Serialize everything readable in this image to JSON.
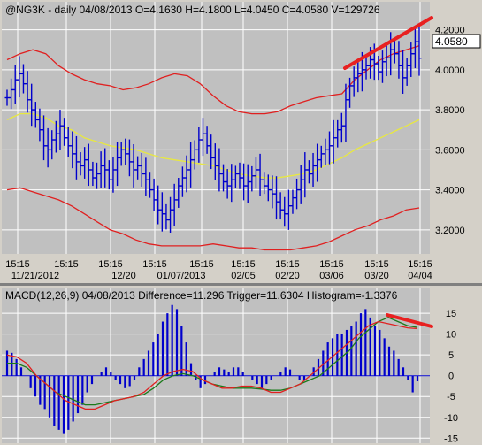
{
  "colors": {
    "bg": "#d4d0c8",
    "plot_bg": "#c0c0c0",
    "grid": "#ffffff",
    "bars": "#0000cc",
    "bollinger": "#e02020",
    "ma": "#e8e840",
    "macd_line": "#e02020",
    "signal_line": "#1a7a1a",
    "trendline": "#e82020",
    "price_box_bg": "#ffffff"
  },
  "price_panel": {
    "title": "@NG3K - daily 04/08/2013 O=4.1630 H=4.1800 L=4.0450 C=4.0580 V=129726",
    "last_price_label": "4.0580",
    "y_ticks": [
      "4.2000",
      "4.0000",
      "3.8000",
      "3.6000",
      "3.4000",
      "3.2000"
    ],
    "x_time_labels": [
      "15:15",
      "15:15",
      "15:15",
      "15:15",
      "15:15",
      "15:15",
      "15:15",
      "15:15",
      "15:15",
      "15:15"
    ],
    "x_date_labels": [
      "11/21/2012",
      "12/20",
      "01/07/2013",
      "02/05",
      "02/20",
      "03/06",
      "03/20",
      "04/04"
    ]
  },
  "macd_panel": {
    "title": "MACD(12,26,9) 04/08/2013 Difference=11.296 Trigger=11.6304 Histogram=-1.3376",
    "y_ticks": [
      "15",
      "10",
      "5",
      "0",
      "-5",
      "-10",
      "-15"
    ]
  },
  "chart_data": [
    {
      "type": "ohlc",
      "symbol": "@NG3K",
      "interval": "daily",
      "ylim": [
        3.08,
        4.26
      ],
      "grid": true,
      "last_close": 4.058,
      "x_labels": [
        "11/21/2012",
        "12/20",
        "01/07/2013",
        "02/05",
        "02/20",
        "03/06",
        "03/20",
        "04/04"
      ],
      "close": [
        3.86,
        3.9,
        3.95,
        3.98,
        3.93,
        3.85,
        3.8,
        3.75,
        3.7,
        3.62,
        3.6,
        3.65,
        3.68,
        3.72,
        3.66,
        3.62,
        3.58,
        3.54,
        3.52,
        3.55,
        3.5,
        3.46,
        3.48,
        3.52,
        3.5,
        3.45,
        3.5,
        3.56,
        3.6,
        3.58,
        3.54,
        3.5,
        3.52,
        3.48,
        3.45,
        3.4,
        3.35,
        3.3,
        3.28,
        3.25,
        3.3,
        3.35,
        3.42,
        3.46,
        3.5,
        3.55,
        3.6,
        3.65,
        3.68,
        3.62,
        3.56,
        3.52,
        3.48,
        3.44,
        3.42,
        3.45,
        3.48,
        3.46,
        3.42,
        3.44,
        3.47,
        3.5,
        3.45,
        3.42,
        3.4,
        3.38,
        3.34,
        3.3,
        3.28,
        3.32,
        3.36,
        3.4,
        3.45,
        3.5,
        3.48,
        3.52,
        3.55,
        3.58,
        3.6,
        3.62,
        3.66,
        3.7,
        3.72,
        3.85,
        3.92,
        3.96,
        3.98,
        4.0,
        4.02,
        4.05,
        4.03,
        3.99,
        4.04,
        4.06,
        4.1,
        4.08,
        4.02,
        3.96,
        4.02,
        4.08,
        4.14,
        4.058
      ],
      "upper_band": [
        4.05,
        4.08,
        4.1,
        4.08,
        4.02,
        3.98,
        3.95,
        3.93,
        3.92,
        3.9,
        3.91,
        3.93,
        3.96,
        3.98,
        3.97,
        3.93,
        3.87,
        3.82,
        3.79,
        3.78,
        3.78,
        3.79,
        3.82,
        3.84,
        3.86,
        3.87,
        3.88,
        3.95,
        4.0,
        4.05,
        4.08,
        4.1,
        4.12
      ],
      "lower_band": [
        3.4,
        3.41,
        3.39,
        3.37,
        3.35,
        3.32,
        3.28,
        3.24,
        3.2,
        3.18,
        3.15,
        3.13,
        3.12,
        3.12,
        3.12,
        3.12,
        3.13,
        3.12,
        3.11,
        3.11,
        3.1,
        3.1,
        3.1,
        3.11,
        3.12,
        3.14,
        3.17,
        3.2,
        3.22,
        3.25,
        3.27,
        3.3,
        3.31
      ],
      "moving_average": [
        3.75,
        3.78,
        3.78,
        3.76,
        3.72,
        3.7,
        3.66,
        3.64,
        3.62,
        3.61,
        3.6,
        3.58,
        3.56,
        3.55,
        3.54,
        3.53,
        3.52,
        3.5,
        3.48,
        3.47,
        3.46,
        3.46,
        3.47,
        3.48,
        3.5,
        3.53,
        3.56,
        3.6,
        3.63,
        3.66,
        3.69,
        3.72,
        3.75
      ]
    },
    {
      "type": "bar",
      "title": "MACD(12,26,9)",
      "ylim": [
        -16,
        18
      ],
      "grid": true,
      "difference": 11.296,
      "trigger": 11.6304,
      "histogram_last": -1.3376,
      "histogram": [
        6,
        5.5,
        4,
        2,
        0,
        -3,
        -5,
        -7,
        -8,
        -10,
        -12,
        -13,
        -14,
        -13,
        -11,
        -9,
        -7,
        -4,
        -2,
        0,
        1,
        2,
        1,
        -1,
        -2,
        -3,
        -2.5,
        -1,
        2,
        4,
        6,
        8,
        10,
        13,
        15,
        17,
        16,
        12,
        8,
        3,
        -1,
        -3,
        -2,
        0,
        1,
        2,
        1.5,
        1,
        2,
        2,
        1,
        0,
        -1,
        -2,
        -3,
        -2,
        -1,
        0,
        1,
        2,
        1.5,
        0,
        -1,
        -1,
        0,
        2,
        4,
        6,
        8,
        9,
        10,
        10,
        11,
        12,
        13,
        15,
        16,
        14,
        12,
        11,
        9,
        7,
        6,
        4,
        2,
        -1,
        -4,
        -1.3376
      ],
      "macd_line": [
        5,
        4.5,
        3,
        0,
        -2,
        -4,
        -6,
        -7,
        -8,
        -8,
        -7,
        -6,
        -5.5,
        -5,
        -4,
        -2,
        0,
        1,
        1.5,
        1,
        -1,
        -2,
        -3,
        -3,
        -2.5,
        -2.5,
        -3,
        -4,
        -4,
        -3,
        -2,
        0,
        2,
        4,
        6,
        8,
        10,
        12,
        13,
        12.5,
        12,
        11.5,
        11.3
      ],
      "signal_line": [
        3,
        3,
        2,
        0,
        -2,
        -4,
        -5,
        -6,
        -7,
        -7,
        -6.5,
        -6,
        -5.5,
        -5,
        -4.5,
        -3,
        -1,
        0,
        0.5,
        0,
        -1,
        -2,
        -2.5,
        -3,
        -3,
        -3,
        -3.2,
        -3.5,
        -3.5,
        -3,
        -2,
        -1,
        0,
        2,
        4,
        6,
        9,
        11,
        13,
        14,
        13,
        12,
        11.6
      ]
    }
  ]
}
